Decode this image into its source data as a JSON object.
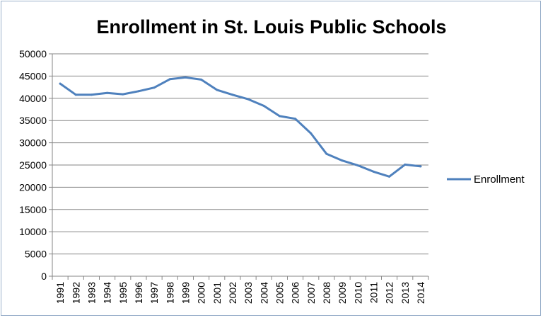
{
  "chart_data": {
    "type": "line",
    "title": "Enrollment in St. Louis Public Schools",
    "xlabel": "",
    "ylabel": "",
    "categories": [
      "1991",
      "1992",
      "1993",
      "1994",
      "1995",
      "1996",
      "1997",
      "1998",
      "1999",
      "2000",
      "2001",
      "2002",
      "2003",
      "2004",
      "2005",
      "2006",
      "2007",
      "2008",
      "2009",
      "2010",
      "2011",
      "2012",
      "2013",
      "2014"
    ],
    "series": [
      {
        "name": "Enrollment",
        "color": "#4f81bd",
        "values": [
          43300,
          40800,
          40800,
          41200,
          40900,
          41600,
          42400,
          44300,
          44700,
          44200,
          41900,
          40800,
          39800,
          38300,
          36000,
          35400,
          32100,
          27500,
          26000,
          24900,
          23500,
          22400,
          25100,
          24700
        ]
      }
    ],
    "ylim": [
      0,
      50000
    ],
    "yticks": [
      "0",
      "5000",
      "10000",
      "15000",
      "20000",
      "25000",
      "30000",
      "35000",
      "40000",
      "45000",
      "50000"
    ],
    "grid": true,
    "legend": "right"
  }
}
